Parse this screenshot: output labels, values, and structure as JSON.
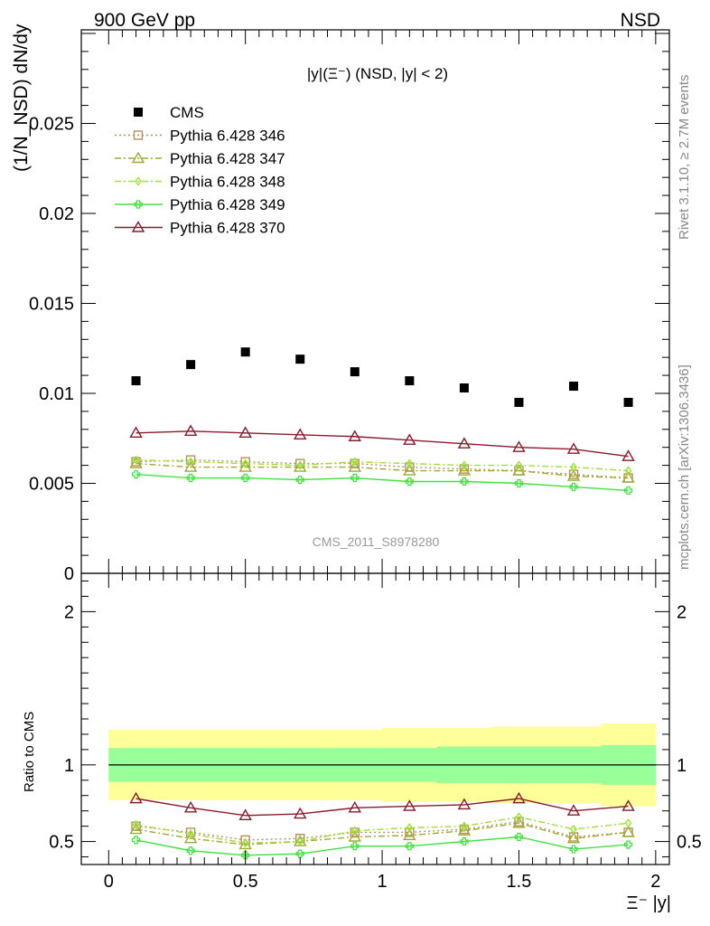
{
  "header": {
    "left": "900 GeV pp",
    "right": "NSD"
  },
  "side_labels": {
    "rivet": "Rivet 3.1.10, ≥ 2.7M events",
    "mcplots": "mcplots.cern.ch [arXiv:1306.3436]"
  },
  "chart_data": [
    {
      "type": "scatter",
      "panel": "main",
      "title": "|y|(Ξ⁻) (NSD, |y| < 2)",
      "ylabel": "(1/N_NSD) dN/dy",
      "watermark": "CMS_2011_S8978280",
      "xlim": [
        -0.1,
        2.05
      ],
      "ylim": [
        0,
        0.0302
      ],
      "yticks": [
        0,
        0.005,
        0.01,
        0.015,
        0.02,
        0.025
      ],
      "ytick_labels": [
        "0",
        "0.005",
        "0.01",
        "0.015",
        "0.02",
        "0.025"
      ],
      "x": [
        0.1,
        0.3,
        0.5,
        0.7,
        0.9,
        1.1,
        1.3,
        1.5,
        1.7,
        1.9
      ],
      "legend": {
        "placement": "top-left"
      },
      "series": [
        {
          "name": "CMS",
          "color": "#000000",
          "marker": "square-filled",
          "line": "none",
          "values": [
            0.0107,
            0.0116,
            0.0123,
            0.0119,
            0.0112,
            0.0107,
            0.0103,
            0.0095,
            0.0104,
            0.0095
          ]
        },
        {
          "name": "Pythia 6.428 346",
          "color": "#b5915a",
          "marker": "square-open",
          "line": "dotted",
          "values": [
            0.0062,
            0.0063,
            0.0062,
            0.0061,
            0.0061,
            0.0059,
            0.0058,
            0.0057,
            0.0055,
            0.0053
          ]
        },
        {
          "name": "Pythia 6.428 347",
          "color": "#9fa930",
          "marker": "triangle-open",
          "line": "dashdot",
          "values": [
            0.0061,
            0.0059,
            0.0059,
            0.0059,
            0.0059,
            0.0057,
            0.0057,
            0.0057,
            0.0054,
            0.0053
          ]
        },
        {
          "name": "Pythia 6.428 348",
          "color": "#9be233",
          "marker": "diamond-open",
          "line": "dashdot",
          "values": [
            0.0063,
            0.0062,
            0.0061,
            0.006,
            0.0062,
            0.0061,
            0.006,
            0.006,
            0.0059,
            0.0057
          ]
        },
        {
          "name": "Pythia 6.428 349",
          "color": "#3fe23f",
          "marker": "cross-open",
          "line": "solid",
          "values": [
            0.0055,
            0.0053,
            0.0053,
            0.0052,
            0.0053,
            0.0051,
            0.0051,
            0.005,
            0.0048,
            0.0046
          ]
        },
        {
          "name": "Pythia 6.428 370",
          "color": "#8b1a2b",
          "marker": "triangle-open",
          "line": "solid",
          "values": [
            0.0078,
            0.0079,
            0.0078,
            0.0077,
            0.0076,
            0.0074,
            0.0072,
            0.007,
            0.0069,
            0.0065
          ]
        }
      ]
    },
    {
      "type": "line",
      "panel": "ratio",
      "ylabel": "Ratio to CMS",
      "xlabel": "Ξ⁻ |y|",
      "xlim": [
        -0.1,
        2.05
      ],
      "ylim": [
        0.35,
        2.25
      ],
      "yticks": [
        0.5,
        1,
        2
      ],
      "ytick_labels": [
        "0.5",
        "1",
        "2"
      ],
      "xticks": [
        0,
        0.5,
        1,
        1.5,
        2
      ],
      "xtick_labels": [
        "0",
        "0.5",
        "1",
        "1.5",
        "2"
      ],
      "band_edges": [
        0.0,
        0.2,
        0.4,
        0.6,
        0.8,
        1.0,
        1.2,
        1.4,
        1.6,
        1.8,
        2.0
      ],
      "band_outer": {
        "color": "#ffff99",
        "lo": [
          0.77,
          0.77,
          0.77,
          0.77,
          0.77,
          0.76,
          0.76,
          0.75,
          0.75,
          0.73
        ],
        "hi": [
          1.23,
          1.23,
          1.23,
          1.23,
          1.23,
          1.24,
          1.24,
          1.25,
          1.25,
          1.27
        ]
      },
      "band_inner": {
        "color": "#99ff99",
        "lo": [
          0.89,
          0.89,
          0.89,
          0.89,
          0.89,
          0.89,
          0.88,
          0.88,
          0.88,
          0.87
        ],
        "hi": [
          1.11,
          1.11,
          1.11,
          1.11,
          1.11,
          1.11,
          1.12,
          1.12,
          1.12,
          1.13
        ]
      },
      "reference_line": 1,
      "x": [
        0.1,
        0.3,
        0.5,
        0.7,
        0.9,
        1.1,
        1.3,
        1.5,
        1.7,
        1.9
      ],
      "series": [
        {
          "name": "Pythia 6.428 346",
          "color": "#b5915a",
          "marker": "square-open",
          "line": "dotted",
          "values": [
            0.6,
            0.56,
            0.51,
            0.52,
            0.56,
            0.56,
            0.58,
            0.63,
            0.53,
            0.56
          ]
        },
        {
          "name": "Pythia 6.428 347",
          "color": "#9fa930",
          "marker": "triangle-open",
          "line": "dashdot",
          "values": [
            0.58,
            0.52,
            0.48,
            0.5,
            0.53,
            0.54,
            0.57,
            0.62,
            0.52,
            0.56
          ]
        },
        {
          "name": "Pythia 6.428 348",
          "color": "#9be233",
          "marker": "diamond-open",
          "line": "dashdot",
          "values": [
            0.61,
            0.55,
            0.49,
            0.5,
            0.57,
            0.59,
            0.6,
            0.66,
            0.58,
            0.62
          ]
        },
        {
          "name": "Pythia 6.428 349",
          "color": "#3fe23f",
          "marker": "cross-open",
          "line": "solid",
          "values": [
            0.51,
            0.44,
            0.41,
            0.42,
            0.47,
            0.47,
            0.5,
            0.53,
            0.45,
            0.48
          ]
        },
        {
          "name": "Pythia 6.428 370",
          "color": "#8b1a2b",
          "marker": "triangle-open",
          "line": "solid",
          "values": [
            0.78,
            0.72,
            0.67,
            0.68,
            0.72,
            0.73,
            0.74,
            0.78,
            0.7,
            0.73
          ]
        }
      ]
    }
  ]
}
